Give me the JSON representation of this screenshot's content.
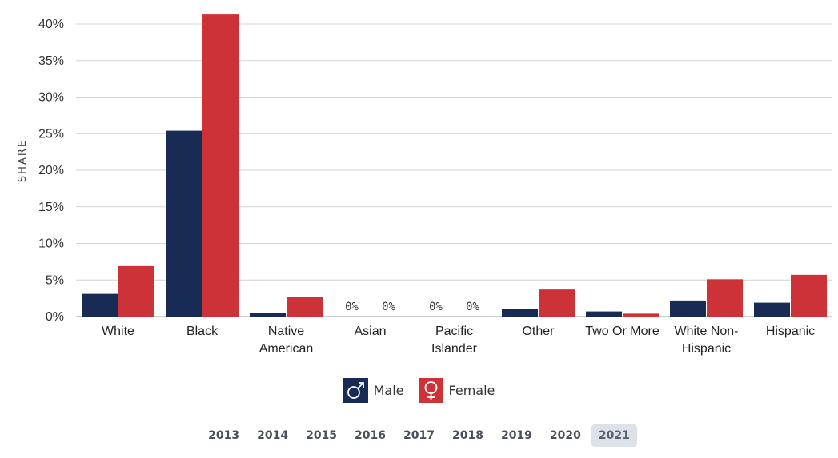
{
  "chart_data": {
    "type": "bar",
    "ylabel": "SHARE",
    "ylim": [
      0,
      40
    ],
    "yticks": [
      "0%",
      "5%",
      "10%",
      "15%",
      "20%",
      "25%",
      "30%",
      "35%",
      "40%"
    ],
    "categories": [
      "White",
      "Black",
      "Native American",
      "Asian",
      "Pacific Islander",
      "Other",
      "Two Or More",
      "White Non-Hispanic",
      "Hispanic"
    ],
    "category_lines": [
      [
        "White"
      ],
      [
        "Black"
      ],
      [
        "Native",
        "American"
      ],
      [
        "Asian"
      ],
      [
        "Pacific",
        "Islander"
      ],
      [
        "Other"
      ],
      [
        "Two Or More"
      ],
      [
        "White Non-",
        "Hispanic"
      ],
      [
        "Hispanic"
      ]
    ],
    "series": [
      {
        "name": "Male",
        "color": "#172b55",
        "values": [
          3.1,
          25.4,
          0.5,
          0,
          0,
          1.0,
          0.7,
          2.2,
          1.9
        ]
      },
      {
        "name": "Female",
        "color": "#cc3237",
        "values": [
          6.9,
          41.3,
          2.7,
          0,
          0,
          3.7,
          0.4,
          5.1,
          5.7
        ]
      }
    ],
    "zero_labels": [
      {
        "category_index": 3,
        "series_index": 0,
        "text": "0%"
      },
      {
        "category_index": 3,
        "series_index": 1,
        "text": "0%"
      },
      {
        "category_index": 4,
        "series_index": 0,
        "text": "0%"
      },
      {
        "category_index": 4,
        "series_index": 1,
        "text": "0%"
      }
    ],
    "grid": true
  },
  "legend": {
    "male_label": "Male",
    "female_label": "Female",
    "male_icon": "male-symbol-icon",
    "female_icon": "female-symbol-icon"
  },
  "years": {
    "items": [
      "2013",
      "2014",
      "2015",
      "2016",
      "2017",
      "2018",
      "2019",
      "2020",
      "2021"
    ],
    "selected": "2021"
  }
}
